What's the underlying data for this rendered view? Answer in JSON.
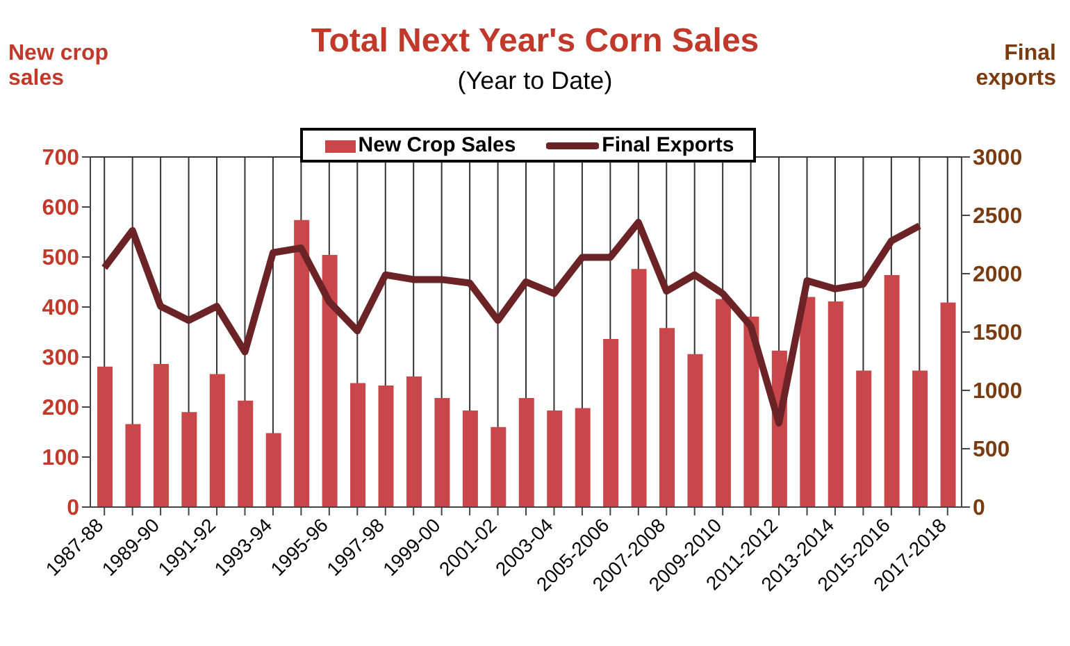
{
  "chart_data": {
    "type": "bar",
    "title": "Total Next Year's Corn Sales",
    "subtitle": "(Year to Date)",
    "ylabel": "New crop sales",
    "y2label": "Final exports",
    "categories": [
      "1987-88",
      null,
      "1989-90",
      null,
      "1991-92",
      null,
      "1993-94",
      null,
      "1995-96",
      null,
      "1997-98",
      null,
      "1999-00",
      null,
      "2001-02",
      null,
      "2003-04",
      null,
      "2005-2006",
      null,
      "2007-2008",
      null,
      "2009-2010",
      null,
      "2011-2012",
      null,
      "2013-2014",
      null,
      "2015-2016",
      null,
      "2017-2018"
    ],
    "series": [
      {
        "name": "New Crop Sales",
        "color": "#c9474a",
        "values": [
          281,
          166,
          286,
          190,
          266,
          213,
          148,
          574,
          504,
          248,
          243,
          261,
          218,
          193,
          160,
          218,
          193,
          198,
          336,
          476,
          358,
          306,
          416,
          381,
          313,
          420,
          411,
          273,
          464,
          273,
          409
        ]
      },
      {
        "name": "Final Exports",
        "type": "line",
        "axis": "y2",
        "color": "#6b2326",
        "values": [
          2050,
          2370,
          1720,
          1600,
          1720,
          1330,
          2180,
          2220,
          1760,
          1510,
          1990,
          1950,
          1950,
          1920,
          1600,
          1930,
          1830,
          2140,
          2140,
          2440,
          1850,
          1990,
          1830,
          1550,
          720,
          1940,
          1870,
          1910,
          2280,
          2410,
          null
        ]
      }
    ],
    "ylim": [
      0,
      700
    ],
    "yticks": [
      0,
      100,
      200,
      300,
      400,
      500,
      600,
      700
    ],
    "y2lim": [
      0,
      3000
    ],
    "y2ticks": [
      0,
      500,
      1000,
      1500,
      2000,
      2500,
      3000
    ],
    "grid": true,
    "legend": "top",
    "marker": "none",
    "line_style": "solid"
  }
}
